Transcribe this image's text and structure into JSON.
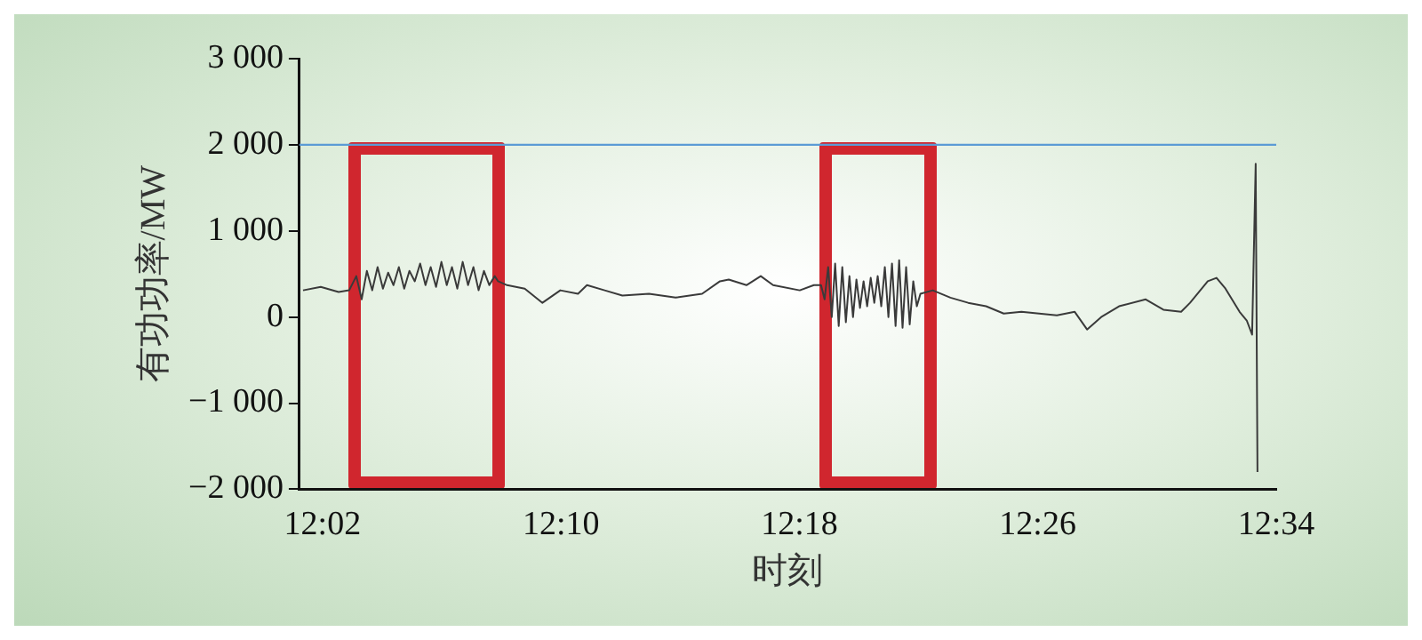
{
  "chart_data": {
    "type": "line",
    "xlabel": "时刻",
    "ylabel": "有功功率/MW",
    "x": [
      12.0224,
      12.0323,
      12.0423,
      12.0482,
      12.0522,
      12.0552,
      12.0581,
      12.0611,
      12.0641,
      12.0671,
      12.07,
      12.073,
      12.076,
      12.079,
      12.0819,
      12.0849,
      12.0879,
      12.0909,
      12.0938,
      12.0968,
      12.0998,
      12.1028,
      12.1057,
      12.1087,
      12.1117,
      12.1147,
      12.1177,
      12.1206,
      12.1236,
      12.1266,
      12.1296,
      12.1315,
      12.1365,
      12.1464,
      12.1563,
      12.1663,
      12.1762,
      12.1812,
      12.1911,
      12.201,
      12.2159,
      12.2308,
      12.2456,
      12.2556,
      12.2605,
      12.2704,
      12.2784,
      12.2853,
      12.3002,
      12.3081,
      12.3121,
      12.3141,
      12.3161,
      12.3181,
      12.32,
      12.322,
      12.324,
      12.326,
      12.328,
      12.33,
      12.3319,
      12.3339,
      12.3359,
      12.3379,
      12.3399,
      12.3419,
      12.3438,
      12.3458,
      12.3478,
      12.3498,
      12.3518,
      12.3538,
      12.3558,
      12.3577,
      12.3597,
      12.3617,
      12.3637,
      12.3657,
      12.3677,
      12.3746,
      12.3845,
      12.3944,
      12.4044,
      12.4143,
      12.4242,
      12.4341,
      12.444,
      12.454,
      12.4609,
      12.4688,
      12.4788,
      12.4937,
      12.5036,
      12.5135,
      12.5185,
      12.5284,
      12.5333,
      12.5383,
      12.5462,
      12.5502,
      12.5532,
      12.5552,
      12.5562
    ],
    "series": [
      {
        "color": "#3a3a3a",
        "values": [
          310,
          350,
          290,
          310,
          475,
          205,
          535,
          310,
          580,
          330,
          515,
          370,
          580,
          330,
          535,
          415,
          620,
          370,
          580,
          350,
          640,
          370,
          580,
          330,
          640,
          370,
          580,
          310,
          535,
          370,
          475,
          415,
          370,
          330,
          165,
          310,
          270,
          370,
          310,
          250,
          270,
          225,
          270,
          415,
          435,
          370,
          475,
          370,
          310,
          370,
          370,
          205,
          580,
          0,
          620,
          -105,
          580,
          -60,
          475,
          0,
          435,
          105,
          415,
          125,
          455,
          165,
          475,
          125,
          580,
          0,
          620,
          -105,
          660,
          -125,
          580,
          -85,
          415,
          125,
          270,
          310,
          225,
          165,
          125,
          40,
          60,
          40,
          20,
          60,
          -145,
          0,
          125,
          205,
          85,
          60,
          165,
          415,
          455,
          330,
          60,
          -40,
          -205,
          1780,
          -1800
        ]
      }
    ],
    "xlim": [
      12.0204,
      12.5667
    ],
    "xticks": [
      {
        "value": 12.0333,
        "label": "12:02"
      },
      {
        "value": 12.1667,
        "label": "12:10"
      },
      {
        "value": 12.3,
        "label": "12:18"
      },
      {
        "value": 12.4333,
        "label": "12:26"
      },
      {
        "value": 12.5667,
        "label": "12:34"
      }
    ],
    "ylim": [
      -2000,
      3000
    ],
    "yticks": [
      {
        "value": -2000,
        "label": "−2 000"
      },
      {
        "value": -1000,
        "label": "−1 000"
      },
      0,
      {
        "value": 1000,
        "label": "1 000"
      },
      {
        "value": 2000,
        "label": "2 000"
      },
      {
        "value": 3000,
        "label": "3 000"
      }
    ],
    "ref_lines": [
      {
        "axis": "y",
        "value": 2000,
        "color": "#5b9bd5"
      }
    ],
    "grid": false,
    "legend": false,
    "marker": "none",
    "line_style": "solid"
  }
}
